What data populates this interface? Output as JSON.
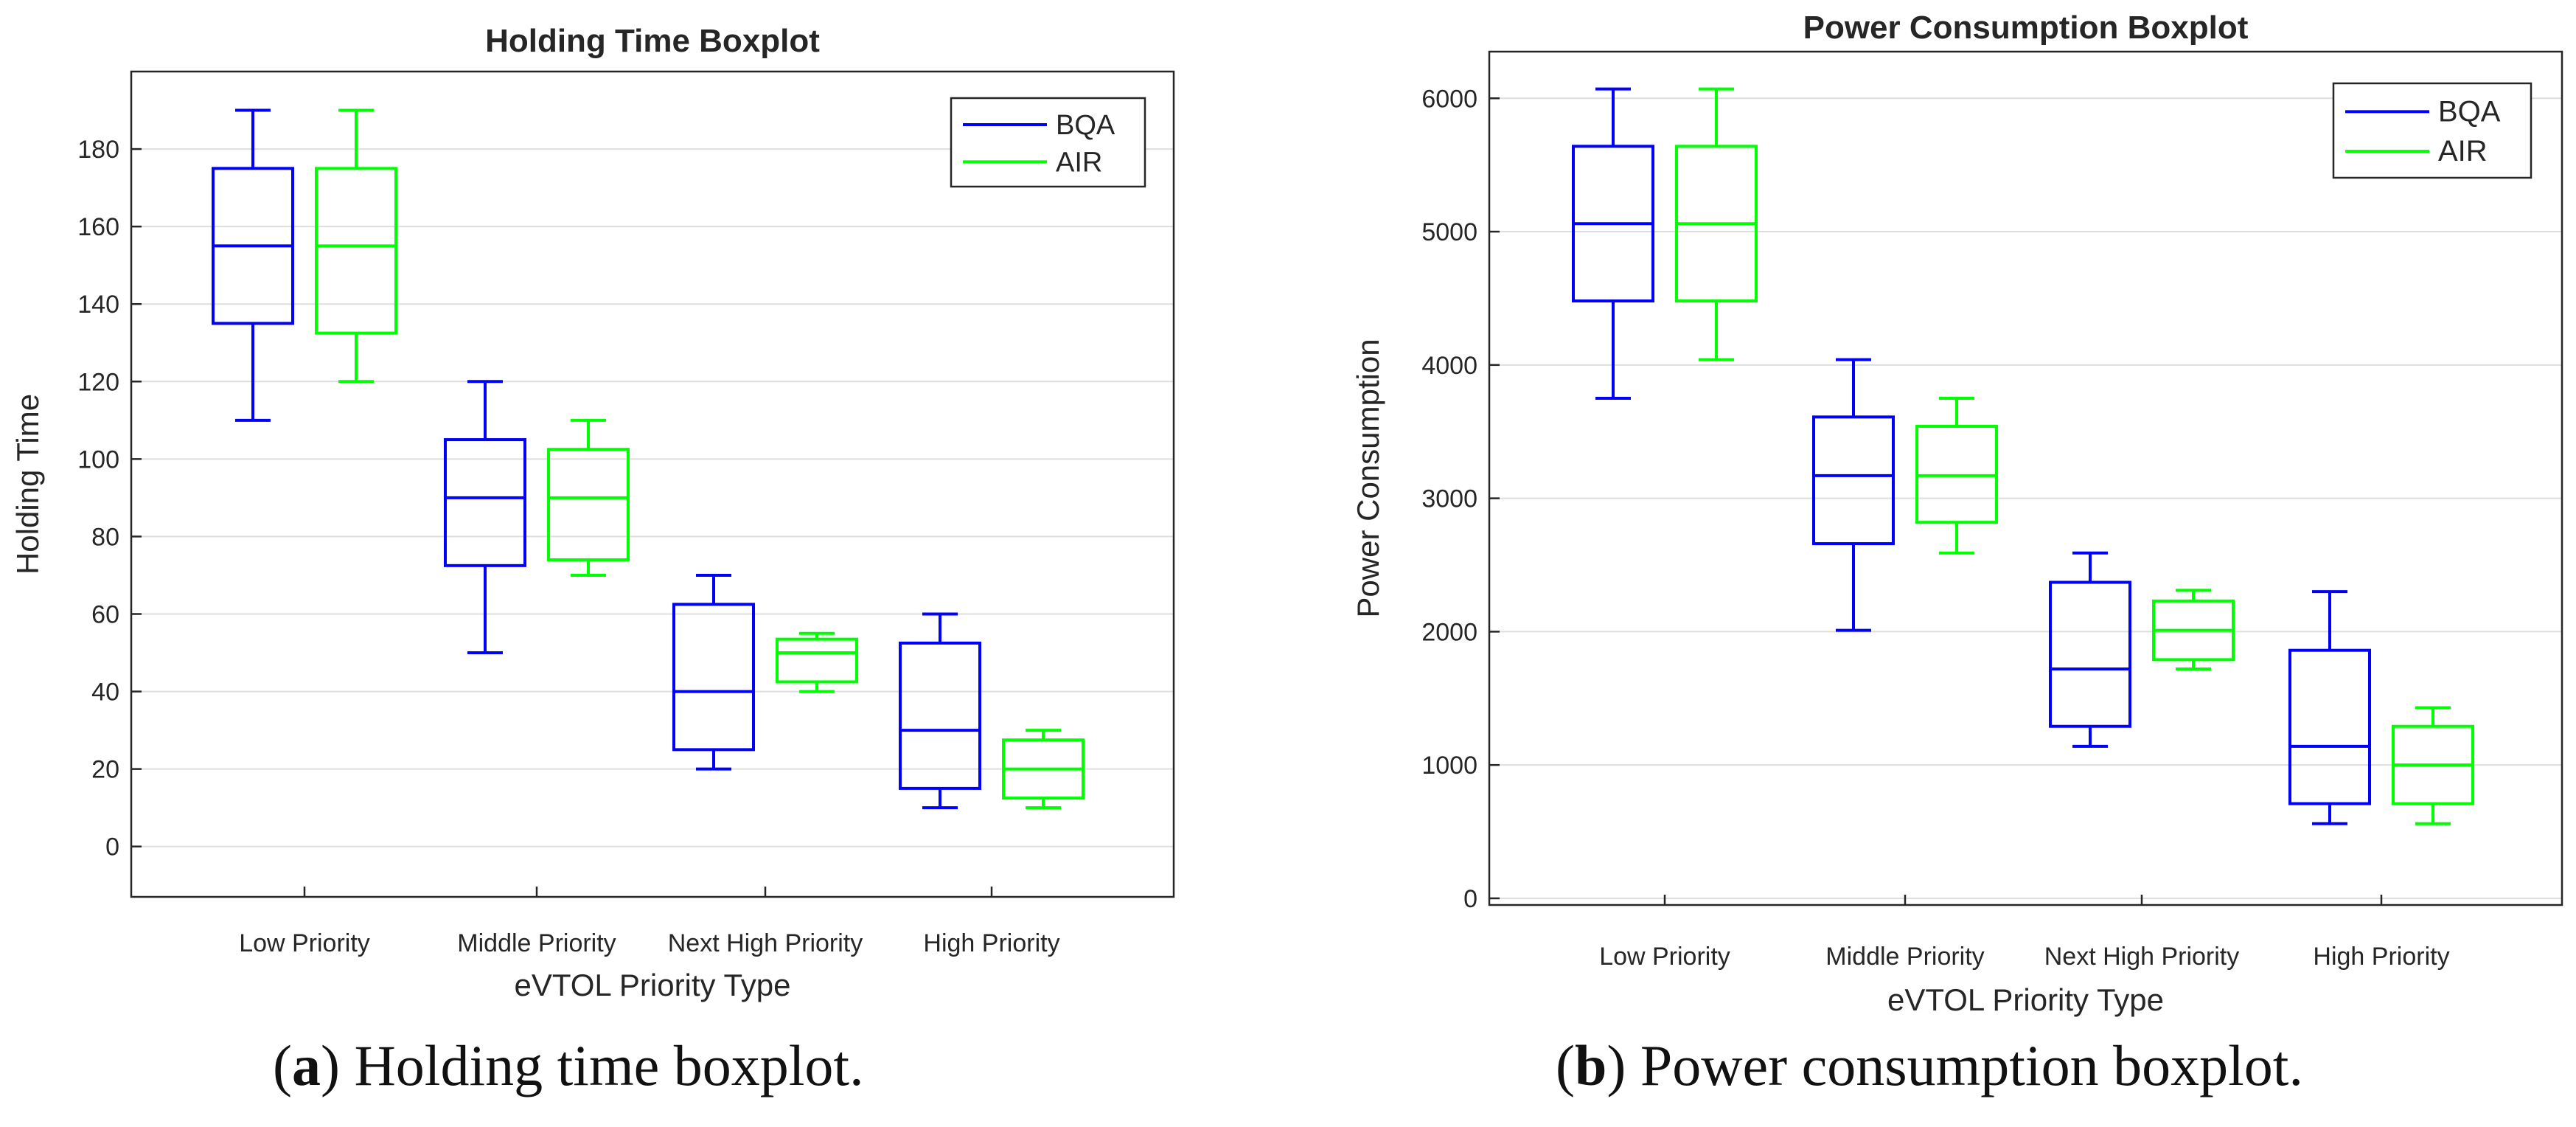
{
  "chart_data": [
    {
      "type": "boxplot",
      "title": "Holding Time Boxplot",
      "xlabel": "eVTOL Priority Type",
      "ylabel": "Holding Time",
      "categories": [
        "Low Priority",
        "Middle Priority",
        "Next High Priority",
        "High Priority"
      ],
      "ylim": [
        -13,
        200
      ],
      "yticks": [
        0,
        20,
        40,
        60,
        80,
        100,
        120,
        140,
        160,
        180
      ],
      "grid": "horizontal",
      "legend_position": "top-right",
      "series": [
        {
          "name": "BQA",
          "color": "#0000ff",
          "boxes": [
            {
              "min": 110,
              "q1": 135,
              "median": 155,
              "q3": 175,
              "max": 190
            },
            {
              "min": 50,
              "q1": 72.5,
              "median": 90,
              "q3": 105,
              "max": 120
            },
            {
              "min": 20,
              "q1": 25,
              "median": 40,
              "q3": 62.5,
              "max": 70
            },
            {
              "min": 10,
              "q1": 15,
              "median": 30,
              "q3": 52.5,
              "max": 60
            }
          ]
        },
        {
          "name": "AIR",
          "color": "#00ff00",
          "boxes": [
            {
              "min": 120,
              "q1": 132.5,
              "median": 155,
              "q3": 175,
              "max": 190
            },
            {
              "min": 70,
              "q1": 74,
              "median": 90,
              "q3": 102.5,
              "max": 110
            },
            {
              "min": 40,
              "q1": 42.5,
              "median": 50,
              "q3": 53.5,
              "max": 55
            },
            {
              "min": 10,
              "q1": 12.5,
              "median": 20,
              "q3": 27.5,
              "max": 30
            }
          ]
        }
      ]
    },
    {
      "type": "boxplot",
      "title": "Power Consumption Boxplot",
      "xlabel": "eVTOL Priority Type",
      "ylabel": "Power Consumption",
      "categories": [
        "Low Priority",
        "Middle Priority",
        "Next High Priority",
        "High Priority"
      ],
      "ylim": [
        -50,
        6350
      ],
      "yticks": [
        0,
        1000,
        2000,
        3000,
        4000,
        5000,
        6000
      ],
      "grid": "horizontal",
      "legend_position": "top-right",
      "series": [
        {
          "name": "BQA",
          "color": "#0000ff",
          "boxes": [
            {
              "min": 3750,
              "q1": 4480,
              "median": 5060,
              "q3": 5640,
              "max": 6070
            },
            {
              "min": 2010,
              "q1": 2660,
              "median": 3170,
              "q3": 3610,
              "max": 4040
            },
            {
              "min": 1140,
              "q1": 1290,
              "median": 1720,
              "q3": 2370,
              "max": 2590
            },
            {
              "min": 560,
              "q1": 710,
              "median": 1140,
              "q3": 1860,
              "max": 2300
            }
          ]
        },
        {
          "name": "AIR",
          "color": "#00ff00",
          "boxes": [
            {
              "min": 4040,
              "q1": 4480,
              "median": 5060,
              "q3": 5640,
              "max": 6070
            },
            {
              "min": 2590,
              "q1": 2820,
              "median": 3170,
              "q3": 3540,
              "max": 3750
            },
            {
              "min": 1720,
              "q1": 1790,
              "median": 2010,
              "q3": 2230,
              "max": 2310
            },
            {
              "min": 560,
              "q1": 710,
              "median": 1000,
              "q3": 1290,
              "max": 1430
            }
          ]
        }
      ]
    }
  ],
  "captions": [
    {
      "label": "a",
      "text": ") Holding time boxplot."
    },
    {
      "label": "b",
      "text": ") Power consumption boxplot."
    }
  ]
}
